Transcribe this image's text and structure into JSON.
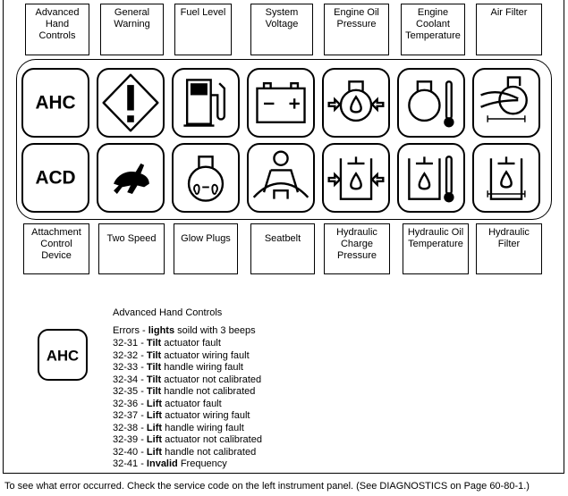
{
  "top_labels": [
    "Advanced\nHand\nControls",
    "General\nWarning",
    "Fuel Level",
    "System\nVoltage",
    "Engine Oil\nPressure",
    "Engine\nCoolant\nTemperature",
    "Air Filter"
  ],
  "bottom_labels": [
    "Attachment\nControl\nDevice",
    "Two Speed",
    "Glow Plugs",
    "Seatbelt",
    "Hydraulic\nCharge\nPressure",
    "Hydraulic Oil\nTemperature",
    "Hydraulic\nFilter"
  ],
  "icons": {
    "ahc_text": "AHC",
    "acd_text": "ACD",
    "battery_minus": "−",
    "battery_plus": "+"
  },
  "legend": {
    "icon_text": "AHC",
    "title": "Advanced Hand Controls",
    "errors_prefix": "Errors - ",
    "errors_bold": "lights",
    "errors_suffix": " soild with 3 beeps",
    "codes": [
      {
        "code": "32-31 - ",
        "bold": "Tilt",
        "text": " actuator fault"
      },
      {
        "code": "32-32 - ",
        "bold": "Tilt",
        "text": " actuator wiring fault"
      },
      {
        "code": "32-33 - ",
        "bold": "Tilt",
        "text": " handle wiring fault"
      },
      {
        "code": "32-34 - ",
        "bold": "Tilt",
        "text": " actuator not calibrated"
      },
      {
        "code": "32-35 - ",
        "bold": "Tilt",
        "text": " handle not calibrated"
      },
      {
        "code": "32-36 - ",
        "bold": "Lift",
        "text": " actuator fault"
      },
      {
        "code": "32-37 - ",
        "bold": "Lift",
        "text": " actuator wiring fault"
      },
      {
        "code": "32-38 - ",
        "bold": "Lift",
        "text": " handle wiring fault"
      },
      {
        "code": "32-39 - ",
        "bold": "Lift",
        "text": " actuator not calibrated"
      },
      {
        "code": "32-40 - ",
        "bold": "Lift",
        "text": " handle not calibrated"
      },
      {
        "code": "32-41 - ",
        "bold": "Invalid",
        "text": " Frequency"
      }
    ]
  },
  "caption": "To see what error occurred. Check the service code on the left instrument panel. (See DIAGNOSTICS on Page 60-80-1.)"
}
